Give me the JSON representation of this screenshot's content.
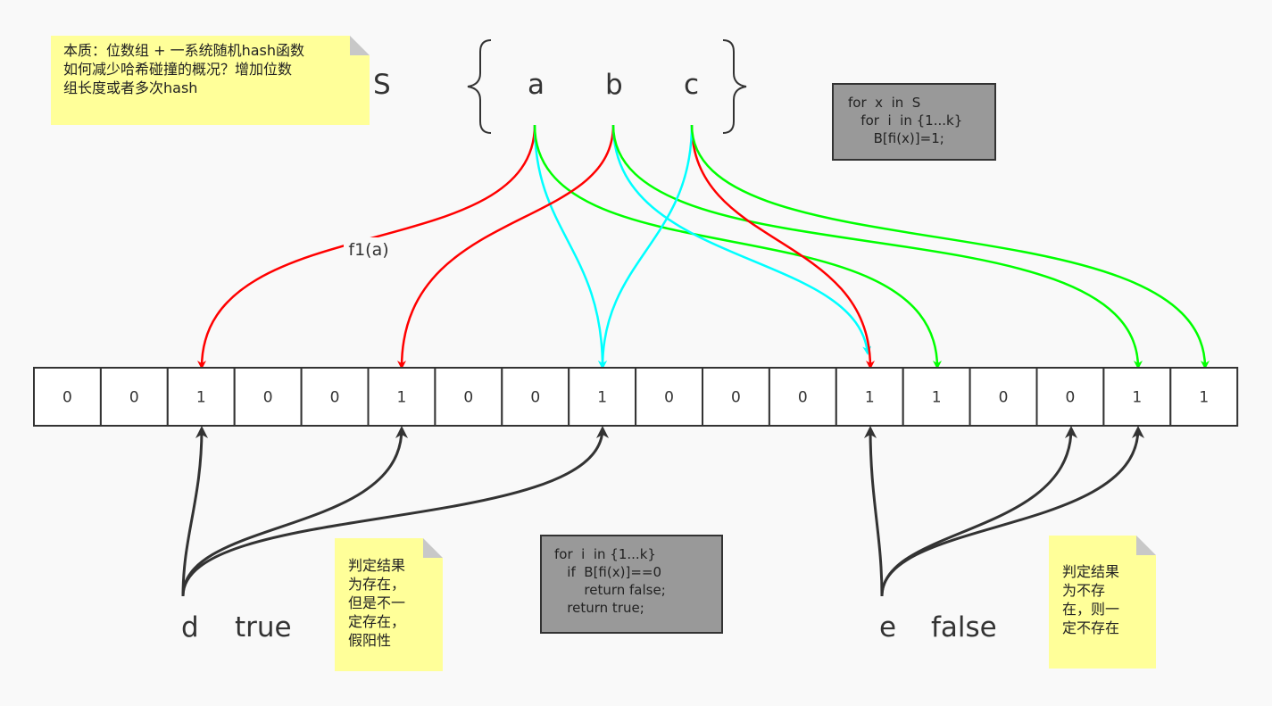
{
  "note_main": {
    "lines": [
      "本质：位数组 + 一系统随机hash函数",
      "如何减少哈希碰撞的概况？增加位数",
      "组长度或者多次hash"
    ]
  },
  "set": {
    "name": "S",
    "elements": [
      "a",
      "b",
      "c"
    ]
  },
  "code_insert": {
    "lines": [
      "for  x  in  S",
      "   for  i  in {1...k}",
      "      B[fi(x)]=1;"
    ]
  },
  "edge_label": "f1(a)",
  "bit_array": {
    "values": [
      "0",
      "0",
      "1",
      "0",
      "0",
      "1",
      "0",
      "0",
      "1",
      "0",
      "0",
      "0",
      "1",
      "1",
      "0",
      "0",
      "1",
      "1"
    ]
  },
  "code_query": {
    "lines": [
      "for  i  in {1...k}",
      "   if  B[fi(x)]==0",
      "       return false;",
      "   return true;"
    ]
  },
  "query_true": {
    "element": "d",
    "result": "true"
  },
  "query_false": {
    "element": "e",
    "result": "false"
  },
  "note_true": {
    "lines": [
      "判定结果",
      "为存在，",
      "但是不一",
      "定存在，",
      "假阳性"
    ]
  },
  "note_false": {
    "lines": [
      "判定结果",
      "为不存",
      "在，则一",
      "定不存在"
    ]
  },
  "colors": {
    "hash1": "#ff0000",
    "hash2": "#00ffff",
    "hash3": "#00ff00",
    "query": "#333333",
    "note": "#ffff99",
    "code_bg": "#999999"
  }
}
